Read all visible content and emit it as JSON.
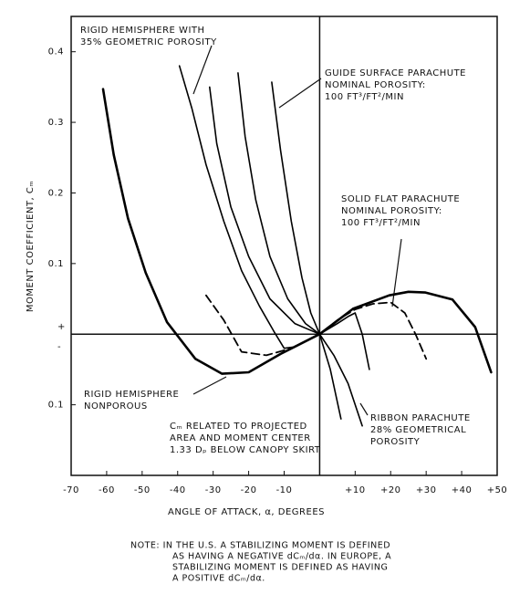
{
  "chart_data": {
    "type": "line",
    "xlabel": "ANGLE OF ATTACK, α, DEGREES",
    "ylabel": "MOMENT COEFFICIENT, Cₘ",
    "xlim": [
      -70,
      50
    ],
    "ylim": [
      -0.2,
      0.45
    ],
    "xticks": [
      -70,
      -60,
      -50,
      -40,
      -30,
      -20,
      -10,
      {
        "value": 10,
        "label": "+10"
      },
      {
        "value": 20,
        "label": "+20"
      },
      {
        "value": 30,
        "label": "+30"
      },
      {
        "value": 40,
        "label": "+40"
      },
      {
        "value": 50,
        "label": "+50"
      }
    ],
    "yticks": [
      0.4,
      0.3,
      0.2,
      0.1,
      {
        "value": -0.1,
        "label": "0.1"
      }
    ],
    "series": [
      {
        "color": "#000000",
        "style": "thick",
        "x": [
          -61,
          -58,
          -54,
          -49,
          -43,
          -35,
          -27.5,
          -20,
          -11,
          0,
          9.4,
          19.6,
          25,
          29.8,
          37.4,
          43.8,
          48.3
        ],
        "values": [
          0.347,
          0.254,
          0.164,
          0.087,
          0.017,
          -0.035,
          -0.056,
          -0.054,
          -0.028,
          0,
          0.036,
          0.055,
          0.06,
          0.059,
          0.049,
          0.01,
          -0.054
        ]
      },
      {
        "color": "#000000",
        "style": "solid",
        "x": [
          -39.5,
          -36,
          -32,
          -27,
          -22,
          -17,
          -13,
          -10,
          -7,
          0
        ],
        "values": [
          0.38,
          0.32,
          0.24,
          0.16,
          0.09,
          0.04,
          0.005,
          -0.02,
          -0.018,
          0
        ]
      },
      {
        "color": "#000000",
        "style": "solid",
        "x": [
          -31,
          -29,
          -25,
          -20,
          -14,
          -7,
          0,
          5,
          8,
          10,
          12,
          14
        ],
        "values": [
          0.35,
          0.27,
          0.18,
          0.11,
          0.05,
          0.015,
          0,
          0.015,
          0.025,
          0.03,
          0.0,
          -0.05
        ]
      },
      {
        "color": "#000000",
        "style": "solid",
        "x": [
          -23,
          -21,
          -18,
          -14,
          -9,
          -4,
          0,
          4,
          8,
          12
        ],
        "values": [
          0.37,
          0.28,
          0.19,
          0.11,
          0.05,
          0.015,
          0,
          -0.03,
          -0.07,
          -0.13
        ]
      },
      {
        "color": "#000000",
        "style": "solid",
        "x": [
          -13.5,
          -11,
          -8,
          -5,
          -2.5,
          0,
          3,
          6
        ],
        "values": [
          0.357,
          0.26,
          0.16,
          0.08,
          0.03,
          0,
          -0.05,
          -0.12
        ]
      },
      {
        "color": "#000000",
        "style": "dashed",
        "x": [
          -32,
          -27,
          -22,
          -15,
          -8,
          0,
          5,
          10,
          15,
          20,
          24,
          27,
          30
        ],
        "values": [
          0.055,
          0.02,
          -0.025,
          -0.03,
          -0.02,
          0,
          0.02,
          0.035,
          0.043,
          0.045,
          0.03,
          0.0,
          -0.035
        ]
      }
    ],
    "annotations": [
      {
        "lines": [
          "RIGID HEMISPHERE WITH",
          "35% GEOMETRIC POROSITY"
        ]
      },
      {
        "lines": [
          "GUIDE SURFACE PARACHUTE",
          "NOMINAL POROSITY:",
          "100 FT³/FT²/MIN"
        ]
      },
      {
        "lines": [
          "SOLID FLAT PARACHUTE",
          "NOMINAL POROSITY:",
          "100 FT³/FT²/MIN"
        ]
      },
      {
        "lines": [
          "RIGID HEMISPHERE",
          "NONPOROUS"
        ]
      },
      {
        "lines": [
          "Cₘ RELATED TO PROJECTED",
          "AREA AND MOMENT CENTER",
          "1.33 Dₚ BELOW CANOPY SKIRT"
        ]
      },
      {
        "lines": [
          "RIBBON PARACHUTE",
          "28% GEOMETRICAL",
          "POROSITY"
        ]
      },
      {
        "lines": [
          "+"
        ]
      },
      {
        "lines": [
          "-"
        ]
      }
    ],
    "note": [
      "NOTE:  IN THE U.S. A STABILIZING MOMENT IS DEFINED",
      "AS HAVING A NEGATIVE dCₘ/dα. IN EUROPE, A",
      "STABILIZING MOMENT IS DEFINED AS HAVING",
      "A POSITIVE dCₘ/dα."
    ]
  }
}
